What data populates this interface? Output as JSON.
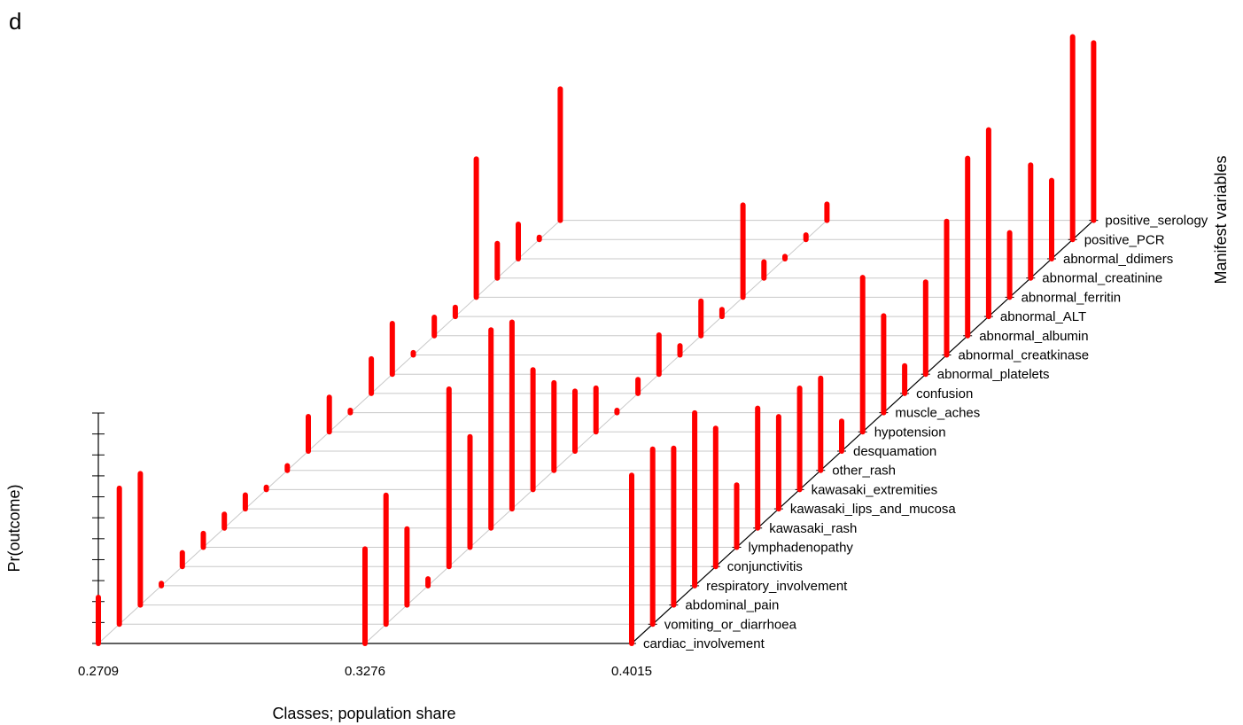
{
  "panel_label": "d",
  "colors": {
    "bar": "#ff0000",
    "grid": "#c8c8c8",
    "axis": "#000000"
  },
  "chart_data": {
    "type": "bar",
    "style": "3d-lollipop-spikes",
    "xlabel": "Classes; population share",
    "ylabel": "Pr(outcome)",
    "zlabel": "Manifest variables",
    "ylim": [
      0,
      1
    ],
    "classes": [
      "0.2709",
      "0.3276",
      "0.4015"
    ],
    "variables": [
      "cardiac_involvement",
      "vomiting_or_diarrhoea",
      "abdominal_pain",
      "respiratory_involvement",
      "conjunctivitis",
      "lymphadenopathy",
      "kawasaki_rash",
      "kawasaki_lips_and_mucosa",
      "kawasaki_extremities",
      "other_rash",
      "desquamation",
      "hypotension",
      "muscle_aches",
      "confusion",
      "abnormal_platelets",
      "abnormal_creatkinase",
      "abnormal_albumin",
      "abnormal_ALT",
      "abnormal_ferritin",
      "abnormal_creatinine",
      "abnormal_ddimers",
      "positive_PCR",
      "positive_serology"
    ],
    "series": [
      {
        "class": "0.2709",
        "values": [
          0.2,
          0.59,
          0.57,
          0.01,
          0.06,
          0.06,
          0.06,
          0.06,
          0.01,
          0.02,
          0.15,
          0.15,
          0.01,
          0.15,
          0.22,
          0.01,
          0.08,
          0.04,
          0.6,
          0.15,
          0.15,
          0.01,
          0.57
        ]
      },
      {
        "class": "0.3276",
        "values": [
          0.41,
          0.56,
          0.33,
          0.03,
          0.77,
          0.48,
          0.86,
          0.81,
          0.52,
          0.38,
          0.26,
          0.19,
          0.01,
          0.06,
          0.17,
          0.04,
          0.15,
          0.03,
          0.4,
          0.07,
          0.01,
          0.02,
          0.07
        ]
      },
      {
        "class": "0.4015",
        "values": [
          0.73,
          0.76,
          0.68,
          0.75,
          0.6,
          0.27,
          0.52,
          0.4,
          0.44,
          0.4,
          0.13,
          0.67,
          0.42,
          0.12,
          0.4,
          0.58,
          0.77,
          0.81,
          0.28,
          0.49,
          0.34,
          0.88,
          0.77
        ]
      }
    ]
  }
}
